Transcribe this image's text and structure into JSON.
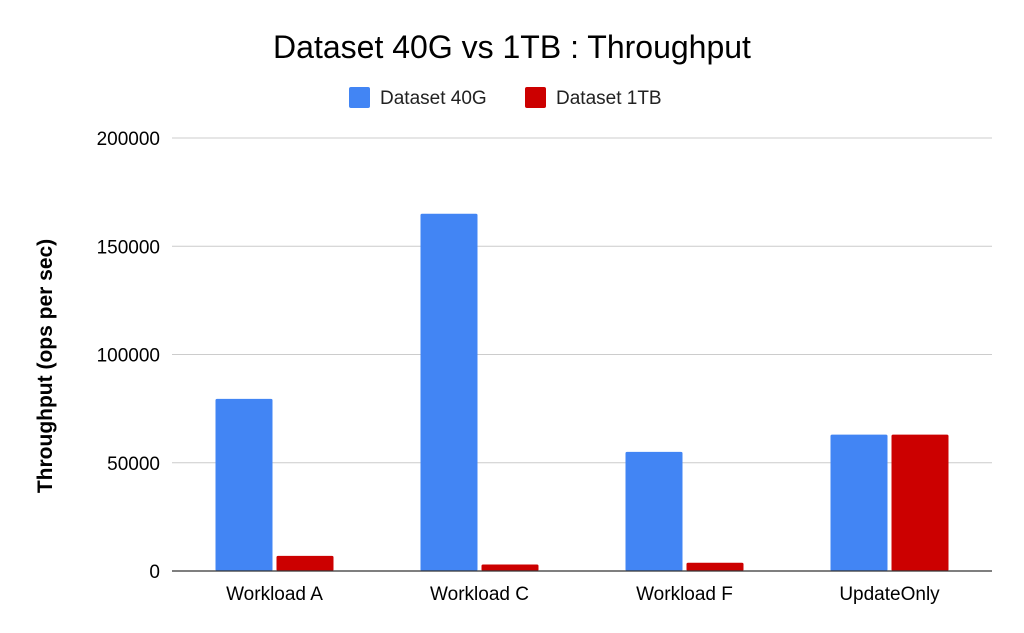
{
  "chart_data": {
    "type": "bar",
    "title": "Dataset 40G vs 1TB : Throughput",
    "xlabel": "",
    "ylabel": "Throughput (ops per sec)",
    "categories": [
      "Workload A",
      "Workload C",
      "Workload F",
      "UpdateOnly"
    ],
    "series": [
      {
        "name": "Dataset 40G",
        "color": "#4285f4",
        "values": [
          79500,
          165000,
          55000,
          63000
        ]
      },
      {
        "name": "Dataset 1TB",
        "color": "#cc0000",
        "values": [
          7000,
          3000,
          3800,
          63000
        ]
      }
    ],
    "ylim": [
      0,
      200000
    ],
    "yticks": [
      "0",
      "50000",
      "100000",
      "150000",
      "200000"
    ],
    "ytick_values": [
      0,
      50000,
      100000,
      150000,
      200000
    ],
    "grid": true,
    "legend_position": "top-center"
  }
}
